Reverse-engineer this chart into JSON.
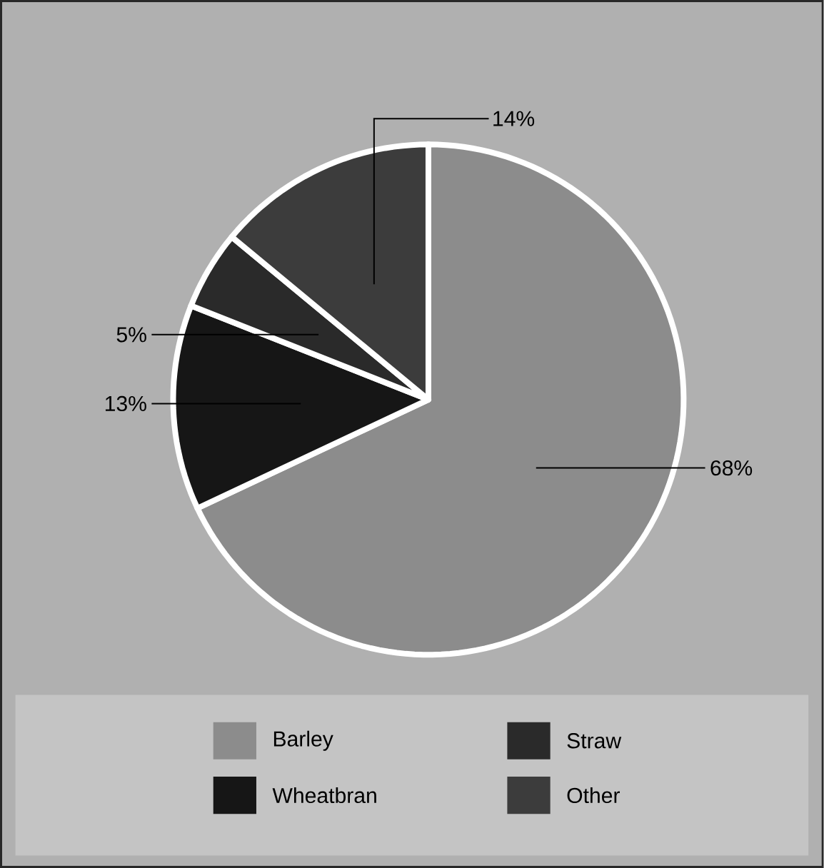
{
  "chart_data": {
    "type": "pie",
    "categories": [
      "Barley",
      "Wheatbran",
      "Straw",
      "Other"
    ],
    "values": [
      68,
      13,
      5,
      14
    ],
    "value_labels": [
      "68%",
      "13%",
      "5%",
      "14%"
    ],
    "colors": [
      "#8c8c8c",
      "#161616",
      "#2a2a2a",
      "#3c3c3c"
    ],
    "legend": "bottom"
  }
}
